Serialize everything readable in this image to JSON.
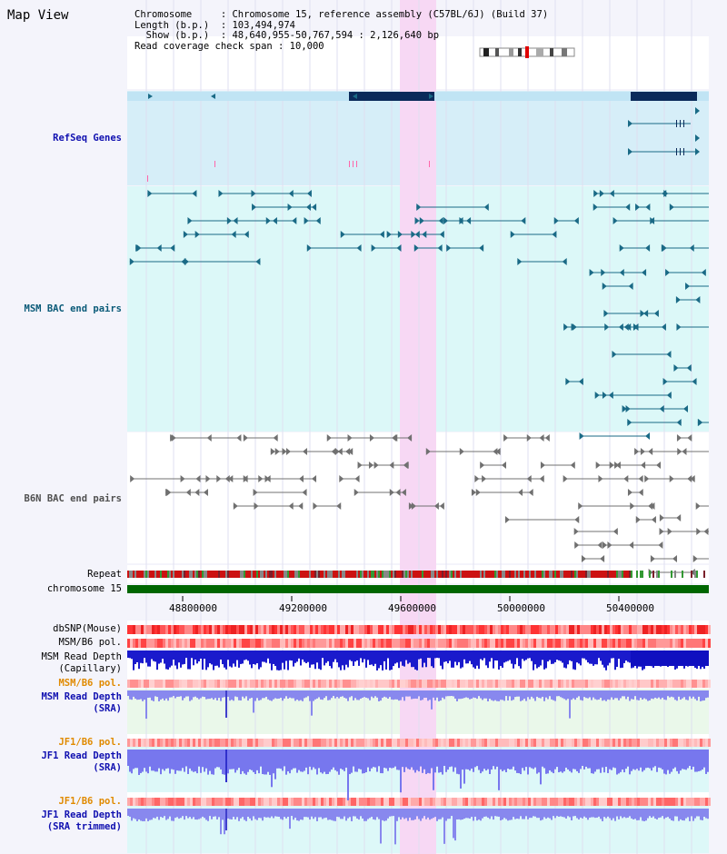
{
  "header": {
    "title": "Map View",
    "info_lines": [
      "Chromosome     : Chromosome 15, reference assembly (C57BL/6J) (Build 37)",
      "Length (b.p.)  : 103,494,974",
      "  Show (b.p.)  : 48,640,955-50,767,594 : 2,126,640 bp",
      "Read coverage check span : 10,000"
    ]
  },
  "tracks": {
    "refseq": "RefSeq Genes",
    "msm_bac": "MSM BAC end pairs",
    "b6n_bac": "B6N BAC end pairs",
    "repeat": "Repeat",
    "chromosome": "chromosome 15",
    "dbsnp": "dbSNP(Mouse)",
    "msm_pol1": "MSM/B6 pol.",
    "msm_depth_cap_1": "MSM Read Depth",
    "msm_depth_cap_2": "(Capillary)",
    "msm_pol2": "MSM/B6 pol.",
    "msm_depth_sra_1": "MSM Read Depth",
    "msm_depth_sra_2": "(SRA)",
    "jf1_pol1": "JF1/B6 pol.",
    "jf1_depth_sra_1": "JF1 Read Depth",
    "jf1_depth_sra_2": "(SRA)",
    "jf1_pol2": "JF1/B6 pol.",
    "jf1_depth_trim_1": "JF1 Read Depth",
    "jf1_depth_trim_2": "(SRA trimmed)"
  },
  "axis": {
    "ticks": [
      "48800000",
      "49200000",
      "49600000",
      "50000000",
      "50400000"
    ]
  },
  "colors": {
    "highlight": "#f7d8f4",
    "refseq_bg": "#d6eef8",
    "msm_bg": "#dcf8f8",
    "gene": "#0a2a5a",
    "msm_feature": "#1a6a86",
    "b6n_feature": "#707070",
    "chrom_bar": "#006600"
  }
}
